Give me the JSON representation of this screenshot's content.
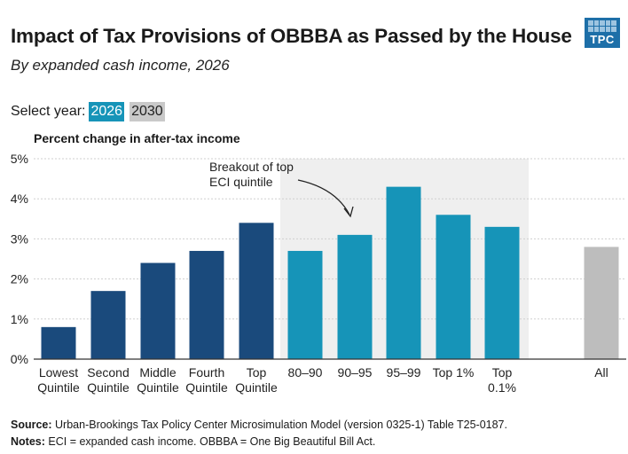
{
  "header": {
    "title": "Impact of Tax Provisions of OBBBA as Passed by the House",
    "subtitle": "By expanded cash income, 2026",
    "logo_text": "TPC"
  },
  "year_selector": {
    "label": "Select year:",
    "options": [
      "2026",
      "2030"
    ],
    "selected": "2026"
  },
  "colors": {
    "quintile": "#1a4a7c",
    "breakout": "#1694b8",
    "all": "#bdbdbd",
    "breakout_bg": "#efefef",
    "grid": "#cfcfcf"
  },
  "chart_data": {
    "type": "bar",
    "ylabel": "Percent change in after-tax income",
    "ylim": [
      0,
      5
    ],
    "yticks": [
      "0%",
      "1%",
      "2%",
      "3%",
      "4%",
      "5%"
    ],
    "categories": [
      [
        "Lowest",
        "Quintile"
      ],
      [
        "Second",
        "Quintile"
      ],
      [
        "Middle",
        "Quintile"
      ],
      [
        "Fourth",
        "Quintile"
      ],
      [
        "Top",
        "Quintile"
      ],
      [
        "80–90"
      ],
      [
        "90–95"
      ],
      [
        "95–99"
      ],
      [
        "Top 1%"
      ],
      [
        "Top",
        "0.1%"
      ],
      [
        "All"
      ]
    ],
    "values": [
      0.8,
      1.7,
      2.4,
      2.7,
      3.4,
      2.7,
      3.1,
      4.3,
      3.6,
      3.3,
      2.8
    ],
    "groups": [
      "quintile",
      "quintile",
      "quintile",
      "quintile",
      "quintile",
      "breakout",
      "breakout",
      "breakout",
      "breakout",
      "breakout",
      "all"
    ],
    "annotation": [
      "Breakout of top",
      "ECI quintile"
    ]
  },
  "footer": {
    "source_label": "Source:",
    "source_text": " Urban-Brookings Tax Policy Center Microsimulation Model (version 0325-1) Table T25-0187.",
    "notes_label": "Notes:",
    "notes_text": " ECI = expanded cash income. OBBBA = One Big Beautiful Bill Act."
  }
}
